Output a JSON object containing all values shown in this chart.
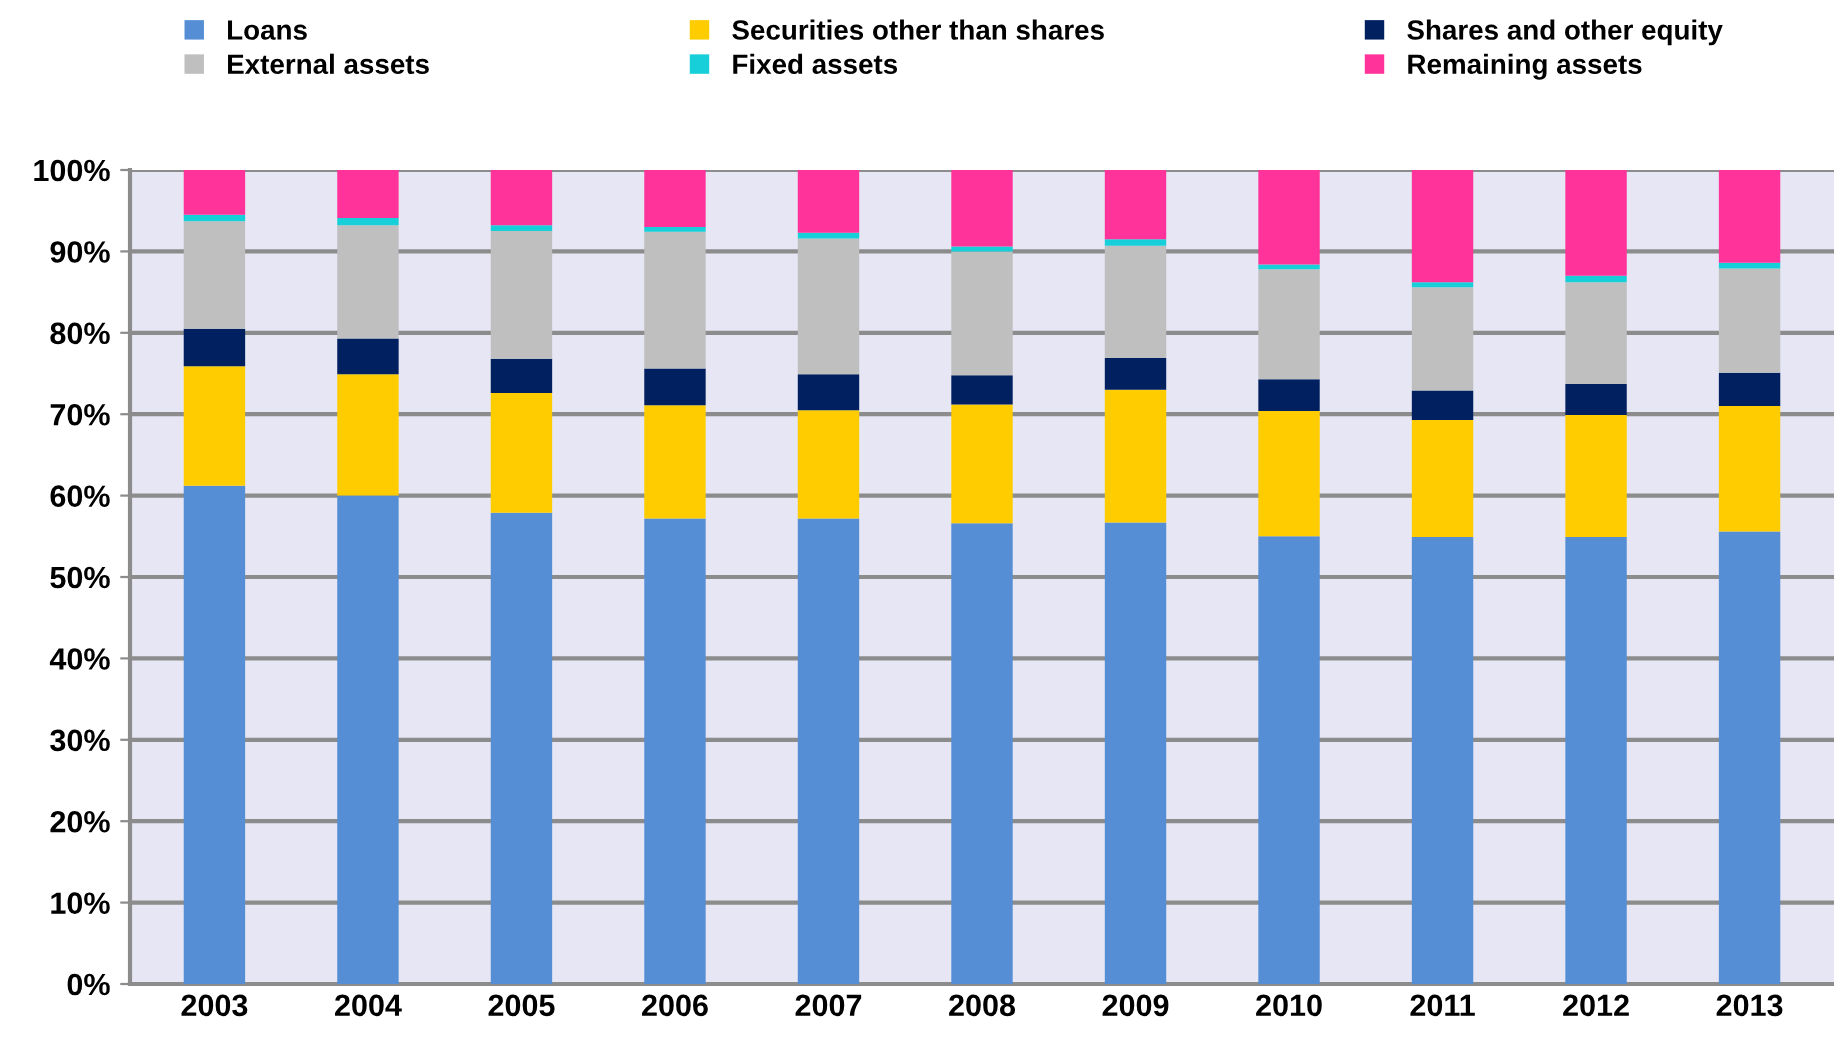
{
  "chart_data": {
    "type": "bar",
    "stacked": true,
    "categories": [
      "2003",
      "2004",
      "2005",
      "2006",
      "2007",
      "2008",
      "2009",
      "2010",
      "2011",
      "2012",
      "2013"
    ],
    "series": [
      {
        "name": "Loans",
        "color": "#558ed5",
        "values": [
          61.2,
          60.0,
          57.9,
          57.2,
          57.2,
          56.6,
          56.7,
          55.0,
          54.9,
          54.9,
          55.6
        ]
      },
      {
        "name": "Securities other than shares",
        "color": "#ffcc00",
        "values": [
          14.7,
          14.9,
          14.7,
          13.9,
          13.3,
          14.6,
          16.3,
          15.4,
          14.4,
          15.0,
          15.4
        ]
      },
      {
        "name": "Shares and other equity",
        "color": "#002060",
        "values": [
          4.6,
          4.4,
          4.2,
          4.5,
          4.4,
          3.6,
          3.9,
          3.9,
          3.6,
          3.8,
          4.1
        ]
      },
      {
        "name": "External assets",
        "color": "#bfbfbf",
        "values": [
          13.2,
          13.9,
          15.7,
          16.8,
          16.7,
          15.2,
          13.8,
          13.5,
          12.7,
          12.5,
          12.8
        ]
      },
      {
        "name": "Fixed assets",
        "color": "#17cfd8",
        "values": [
          0.8,
          0.9,
          0.7,
          0.6,
          0.7,
          0.6,
          0.8,
          0.6,
          0.6,
          0.8,
          0.7
        ]
      },
      {
        "name": "Remaining assets",
        "color": "#ff3399",
        "values": [
          5.5,
          5.9,
          6.8,
          7.0,
          7.7,
          9.4,
          8.5,
          11.6,
          13.8,
          13.0,
          11.4
        ]
      }
    ],
    "ylim": [
      0,
      100
    ],
    "yticks": [
      {
        "value": 0,
        "label": "0%"
      },
      {
        "value": 10,
        "label": "10%"
      },
      {
        "value": 20,
        "label": "20%"
      },
      {
        "value": 30,
        "label": "30%"
      },
      {
        "value": 40,
        "label": "40%"
      },
      {
        "value": 50,
        "label": "50%"
      },
      {
        "value": 60,
        "label": "60%"
      },
      {
        "value": 70,
        "label": "70%"
      },
      {
        "value": 80,
        "label": "80%"
      },
      {
        "value": 90,
        "label": "90%"
      },
      {
        "value": 100,
        "label": "100%"
      }
    ],
    "grid": "y",
    "legend": "top"
  }
}
